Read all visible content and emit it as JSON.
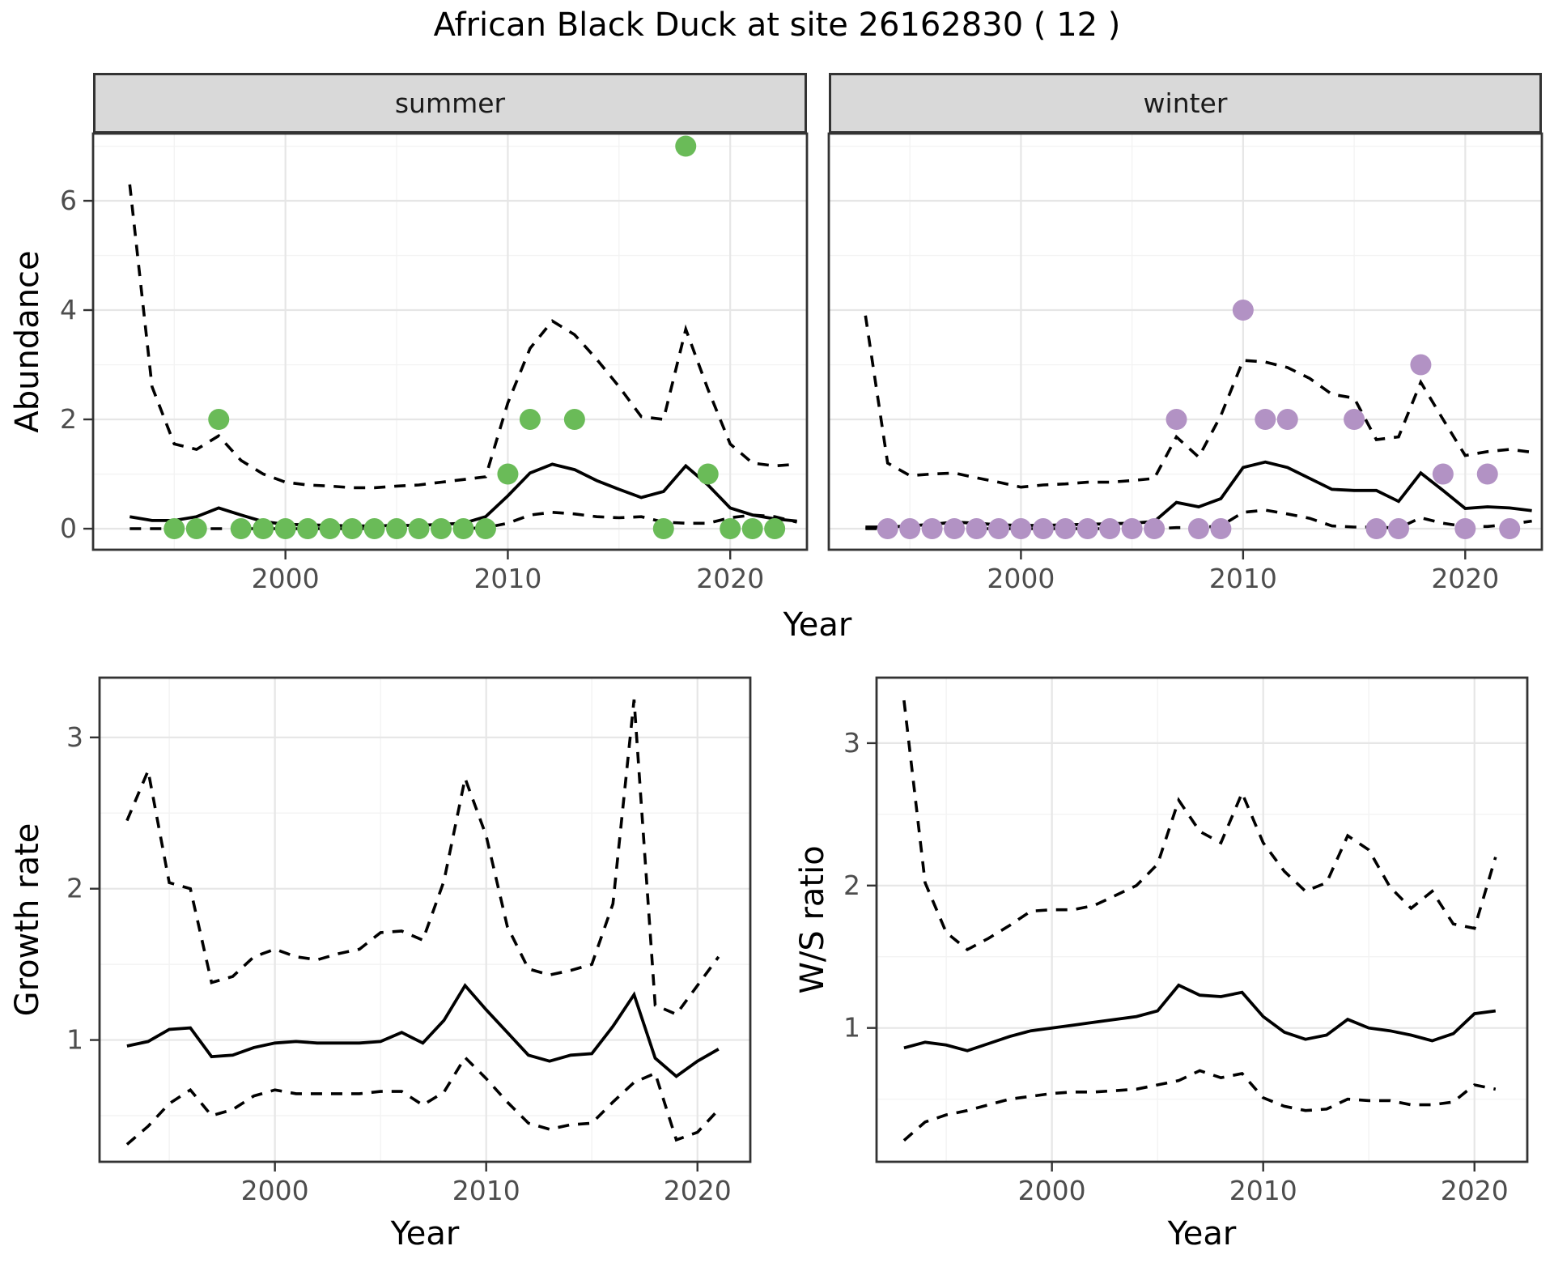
{
  "title": "African Black Duck at site 26162830 ( 12 )",
  "colors": {
    "background": "#ffffff",
    "line": "#000000",
    "summer_point": "#6abb58",
    "winter_point": "#b292c4",
    "strip_bg": "#d9d9d9",
    "panel_border": "#333333",
    "grid_major": "#e6e6e6",
    "grid_minor": "#f3f3f3",
    "tick_label": "#4d4d4d",
    "tick_mark": "#333333"
  },
  "chart_data": [
    {
      "id": "abundance_by_season",
      "type": "line",
      "ylabel": "Abundance",
      "xlabel": "Year",
      "xticks": [
        2000,
        2010,
        2020
      ],
      "yticks": [
        0,
        2,
        4,
        6
      ],
      "xticks_minor": [
        1995,
        2005,
        2015
      ],
      "yticks_minor": [
        1,
        3,
        5,
        7
      ],
      "xlim": [
        1991.35,
        2023.45
      ],
      "ylim": [
        -0.385,
        7.23
      ],
      "grid": true,
      "legend_position": "none",
      "years": [
        1993,
        1994,
        1995,
        1996,
        1997,
        1998,
        1999,
        2000,
        2001,
        2002,
        2003,
        2004,
        2005,
        2006,
        2007,
        2008,
        2009,
        2010,
        2011,
        2012,
        2013,
        2014,
        2015,
        2016,
        2017,
        2018,
        2019,
        2020,
        2021,
        2022,
        2023
      ],
      "panels": [
        {
          "facet": "summer",
          "point_color": "#6abb58",
          "fit": [
            0.22,
            0.15,
            0.15,
            0.22,
            0.38,
            0.25,
            0.13,
            0.08,
            0.07,
            0.06,
            0.05,
            0.05,
            0.06,
            0.06,
            0.08,
            0.1,
            0.22,
            0.6,
            1.02,
            1.18,
            1.08,
            0.88,
            0.72,
            0.57,
            0.68,
            1.15,
            0.8,
            0.38,
            0.25,
            0.18,
            0.14
          ],
          "upper": [
            6.3,
            2.6,
            1.55,
            1.45,
            1.7,
            1.25,
            1.0,
            0.85,
            0.8,
            0.78,
            0.75,
            0.75,
            0.78,
            0.8,
            0.85,
            0.9,
            0.95,
            2.3,
            3.3,
            3.8,
            3.55,
            3.1,
            2.6,
            2.05,
            2.0,
            3.65,
            2.55,
            1.55,
            1.2,
            1.15,
            1.18
          ],
          "lower": [
            0,
            0,
            0,
            0,
            0,
            0,
            0,
            0,
            0,
            0,
            0,
            0,
            0,
            0,
            0,
            0,
            0.02,
            0.1,
            0.25,
            0.3,
            0.27,
            0.22,
            0.2,
            0.22,
            0.12,
            0.1,
            0.1,
            0.2,
            0.25,
            0.22,
            0.12
          ],
          "observations": {
            "years": [
              1995,
              1996,
              1997,
              1998,
              1999,
              2000,
              2001,
              2002,
              2003,
              2004,
              2005,
              2006,
              2007,
              2008,
              2009,
              2010,
              2011,
              2013,
              2017,
              2018,
              2019,
              2020,
              2021,
              2022
            ],
            "counts": [
              0,
              0,
              2,
              0,
              0,
              0,
              0,
              0,
              0,
              0,
              0,
              0,
              0,
              0,
              0,
              1,
              2,
              2,
              0,
              7,
              1,
              0,
              0,
              0
            ]
          }
        },
        {
          "facet": "winter",
          "point_color": "#b292c4",
          "fit": [
            0.03,
            0.03,
            0.05,
            0.08,
            0.12,
            0.1,
            0.07,
            0.06,
            0.06,
            0.07,
            0.08,
            0.09,
            0.1,
            0.13,
            0.48,
            0.4,
            0.55,
            1.12,
            1.22,
            1.12,
            0.92,
            0.72,
            0.7,
            0.7,
            0.5,
            1.02,
            0.7,
            0.37,
            0.4,
            0.38,
            0.33
          ],
          "upper": [
            3.9,
            1.2,
            0.97,
            1.0,
            1.02,
            0.93,
            0.85,
            0.76,
            0.8,
            0.82,
            0.85,
            0.85,
            0.88,
            0.92,
            1.68,
            1.31,
            2.07,
            3.08,
            3.05,
            2.95,
            2.75,
            2.46,
            2.39,
            1.63,
            1.68,
            2.68,
            2.0,
            1.34,
            1.41,
            1.45,
            1.4
          ],
          "lower": [
            0,
            0,
            0,
            0,
            0,
            0,
            0,
            0,
            0,
            0,
            0,
            0,
            0,
            0,
            0.02,
            0.02,
            0.05,
            0.3,
            0.34,
            0.27,
            0.19,
            0.05,
            0.03,
            0.03,
            0.01,
            0.2,
            0.1,
            0.04,
            0.04,
            0.08,
            0.14
          ],
          "observations": {
            "years": [
              1994,
              1995,
              1996,
              1997,
              1998,
              1999,
              2000,
              2001,
              2002,
              2003,
              2004,
              2005,
              2006,
              2007,
              2008,
              2009,
              2010,
              2011,
              2012,
              2015,
              2016,
              2017,
              2018,
              2019,
              2020,
              2021,
              2022
            ],
            "counts": [
              0,
              0,
              0,
              0,
              0,
              0,
              0,
              0,
              0,
              0,
              0,
              0,
              0,
              2,
              0,
              0,
              4,
              2,
              2,
              2,
              0,
              0,
              3,
              1,
              0,
              1,
              0
            ]
          }
        }
      ]
    },
    {
      "id": "growth_rate",
      "type": "line",
      "ylabel": "Growth rate",
      "xlabel": "Year",
      "xticks": [
        2000,
        2010,
        2020
      ],
      "yticks": [
        1,
        2,
        3
      ],
      "xticks_minor": [
        1995,
        2005,
        2015
      ],
      "yticks_minor": [
        0.5,
        1.5,
        2.5,
        3.5
      ],
      "xlim": [
        1991.7,
        2022.5
      ],
      "ylim": [
        0.195,
        3.395
      ],
      "grid": true,
      "years": [
        1993,
        1994,
        1995,
        1996,
        1997,
        1998,
        1999,
        2000,
        2001,
        2002,
        2003,
        2004,
        2005,
        2006,
        2007,
        2008,
        2009,
        2010,
        2011,
        2012,
        2013,
        2014,
        2015,
        2016,
        2017,
        2018,
        2019,
        2020,
        2021
      ],
      "fit": [
        0.96,
        0.99,
        1.07,
        1.08,
        0.89,
        0.9,
        0.95,
        0.98,
        0.99,
        0.98,
        0.98,
        0.98,
        0.99,
        1.05,
        0.98,
        1.13,
        1.36,
        1.2,
        1.05,
        0.9,
        0.86,
        0.9,
        0.91,
        1.09,
        1.3,
        0.88,
        0.76,
        0.86,
        0.94
      ],
      "upper": [
        2.45,
        2.78,
        2.04,
        2.0,
        1.38,
        1.42,
        1.55,
        1.6,
        1.55,
        1.53,
        1.57,
        1.6,
        1.71,
        1.72,
        1.66,
        2.05,
        2.73,
        2.35,
        1.75,
        1.47,
        1.43,
        1.46,
        1.5,
        1.9,
        3.25,
        1.23,
        1.17,
        1.36,
        1.55
      ],
      "lower": [
        0.31,
        0.43,
        0.58,
        0.67,
        0.5,
        0.54,
        0.63,
        0.67,
        0.645,
        0.645,
        0.645,
        0.645,
        0.66,
        0.66,
        0.57,
        0.655,
        0.885,
        0.745,
        0.59,
        0.45,
        0.41,
        0.44,
        0.45,
        0.59,
        0.72,
        0.78,
        0.34,
        0.39,
        0.54
      ]
    },
    {
      "id": "ws_ratio",
      "type": "line",
      "ylabel": "W/S ratio",
      "xlabel": "Year",
      "xticks": [
        2000,
        2010,
        2020
      ],
      "yticks": [
        1,
        2,
        3
      ],
      "xticks_minor": [
        1995,
        2005,
        2015
      ],
      "yticks_minor": [
        0.5,
        1.5,
        2.5,
        3.5
      ],
      "xlim": [
        1991.7,
        2022.5
      ],
      "ylim": [
        0.06,
        3.46
      ],
      "grid": true,
      "years": [
        1993,
        1994,
        1995,
        1996,
        1997,
        1998,
        1999,
        2000,
        2001,
        2002,
        2003,
        2004,
        2005,
        2006,
        2007,
        2008,
        2009,
        2010,
        2011,
        2012,
        2013,
        2014,
        2015,
        2016,
        2017,
        2018,
        2019,
        2020,
        2021
      ],
      "fit": [
        0.86,
        0.9,
        0.88,
        0.84,
        0.89,
        0.94,
        0.98,
        1.0,
        1.02,
        1.04,
        1.06,
        1.08,
        1.12,
        1.3,
        1.23,
        1.22,
        1.25,
        1.08,
        0.97,
        0.92,
        0.95,
        1.06,
        1.0,
        0.98,
        0.95,
        0.91,
        0.96,
        1.1,
        1.12
      ],
      "upper": [
        3.3,
        2.02,
        1.67,
        1.55,
        1.63,
        1.72,
        1.82,
        1.83,
        1.83,
        1.86,
        1.93,
        2.0,
        2.15,
        2.6,
        2.38,
        2.3,
        2.65,
        2.3,
        2.1,
        1.96,
        2.02,
        2.35,
        2.25,
        1.99,
        1.84,
        1.96,
        1.73,
        1.7,
        2.2
      ],
      "lower": [
        0.21,
        0.34,
        0.39,
        0.42,
        0.46,
        0.5,
        0.52,
        0.54,
        0.55,
        0.55,
        0.56,
        0.57,
        0.6,
        0.63,
        0.7,
        0.65,
        0.68,
        0.51,
        0.45,
        0.42,
        0.43,
        0.5,
        0.49,
        0.49,
        0.46,
        0.46,
        0.48,
        0.6,
        0.57
      ]
    }
  ]
}
